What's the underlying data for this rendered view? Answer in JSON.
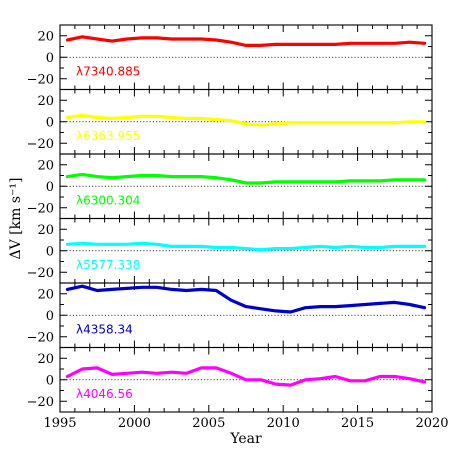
{
  "chart_data": {
    "type": "line",
    "xlabel": "Year",
    "ylabel": "ΔV [km s⁻¹]",
    "xlim": [
      1995,
      2020
    ],
    "ylim": [
      -30,
      30
    ],
    "x_ticks": [
      1995,
      2000,
      2005,
      2010,
      2015,
      2020
    ],
    "y_ticks": [
      -20,
      0,
      20
    ],
    "zero_line": "dotted",
    "panels": [
      {
        "label": "λ7340.885",
        "color": "#ff0000",
        "x": [
          1995.5,
          1996.5,
          1997.5,
          1998.5,
          1999.5,
          2000.5,
          2001.5,
          2002.5,
          2003.5,
          2004.5,
          2005.5,
          2006.5,
          2007.5,
          2008.5,
          2009.5,
          2010.5,
          2011.5,
          2012.5,
          2013.5,
          2014.5,
          2015.5,
          2016.5,
          2017.5,
          2018.5,
          2019.5
        ],
        "y": [
          16,
          19,
          17,
          15,
          17,
          18,
          18,
          17,
          17,
          17,
          16,
          14,
          11,
          11,
          12,
          12,
          12,
          12,
          12,
          13,
          13,
          13,
          13,
          14,
          13
        ]
      },
      {
        "label": "λ6363.955",
        "color": "#ffff00",
        "x": [
          1995.5,
          1996.5,
          1997.5,
          1998.5,
          1999.5,
          2000.5,
          2001.5,
          2002.5,
          2003.5,
          2004.5,
          2005.5,
          2006.5,
          2007.5,
          2008.5,
          2009.5,
          2010.5,
          2011.5,
          2012.5,
          2013.5,
          2014.5,
          2015.5,
          2016.5,
          2017.5,
          2018.5,
          2019.5
        ],
        "y": [
          4,
          6,
          4,
          3,
          4,
          5,
          5,
          4,
          3,
          3,
          2,
          1,
          -2,
          -3,
          -2,
          -1,
          -1,
          -1,
          -1,
          -1,
          -1,
          -1,
          -1,
          0,
          0
        ]
      },
      {
        "label": "λ6300.304",
        "color": "#00ff00",
        "x": [
          1995.5,
          1996.5,
          1997.5,
          1998.5,
          1999.5,
          2000.5,
          2001.5,
          2002.5,
          2003.5,
          2004.5,
          2005.5,
          2006.5,
          2007.5,
          2008.5,
          2009.5,
          2010.5,
          2011.5,
          2012.5,
          2013.5,
          2014.5,
          2015.5,
          2016.5,
          2017.5,
          2018.5,
          2019.5
        ],
        "y": [
          9,
          11,
          9,
          8,
          9,
          10,
          10,
          9,
          9,
          9,
          8,
          6,
          3,
          3,
          4,
          4,
          4,
          4,
          4,
          5,
          5,
          5,
          6,
          6,
          6
        ]
      },
      {
        "label": "λ5577.338",
        "color": "#00ffff",
        "x": [
          1995.5,
          1996.5,
          1997.5,
          1998.5,
          1999.5,
          2000.5,
          2001.5,
          2002.5,
          2003.5,
          2004.5,
          2005.5,
          2006.5,
          2007.5,
          2008.5,
          2009.5,
          2010.5,
          2011.5,
          2012.5,
          2013.5,
          2014.5,
          2015.5,
          2016.5,
          2017.5,
          2018.5,
          2019.5
        ],
        "y": [
          6,
          7,
          6,
          6,
          6,
          7,
          6,
          4,
          4,
          4,
          3,
          3,
          2,
          1,
          2,
          2,
          3,
          4,
          3,
          4,
          3,
          3,
          4,
          4,
          4
        ]
      },
      {
        "label": "λ4358.34",
        "color": "#0000cc",
        "x": [
          1995.5,
          1996.5,
          1997.5,
          1998.5,
          1999.5,
          2000.5,
          2001.5,
          2002.5,
          2003.5,
          2004.5,
          2005.5,
          2006.5,
          2007.5,
          2008.5,
          2009.5,
          2010.5,
          2011.5,
          2012.5,
          2013.5,
          2014.5,
          2015.5,
          2016.5,
          2017.5,
          2018.5,
          2019.5
        ],
        "y": [
          24,
          27,
          23,
          24,
          25,
          26,
          26,
          24,
          23,
          24,
          23,
          14,
          8,
          6,
          4,
          3,
          7,
          8,
          8,
          9,
          10,
          11,
          12,
          10,
          7
        ]
      },
      {
        "label": "λ4046.56",
        "color": "#ff00ff",
        "x": [
          1995.5,
          1996.5,
          1997.5,
          1998.5,
          1999.5,
          2000.5,
          2001.5,
          2002.5,
          2003.5,
          2004.5,
          2005.5,
          2006.5,
          2007.5,
          2008.5,
          2009.5,
          2010.5,
          2011.5,
          2012.5,
          2013.5,
          2014.5,
          2015.5,
          2016.5,
          2017.5,
          2018.5,
          2019.5
        ],
        "y": [
          3,
          10,
          11,
          5,
          6,
          7,
          6,
          7,
          6,
          11,
          11,
          6,
          0,
          0,
          -4,
          -5,
          0,
          1,
          3,
          -1,
          -1,
          3,
          3,
          1,
          -2
        ]
      }
    ]
  }
}
